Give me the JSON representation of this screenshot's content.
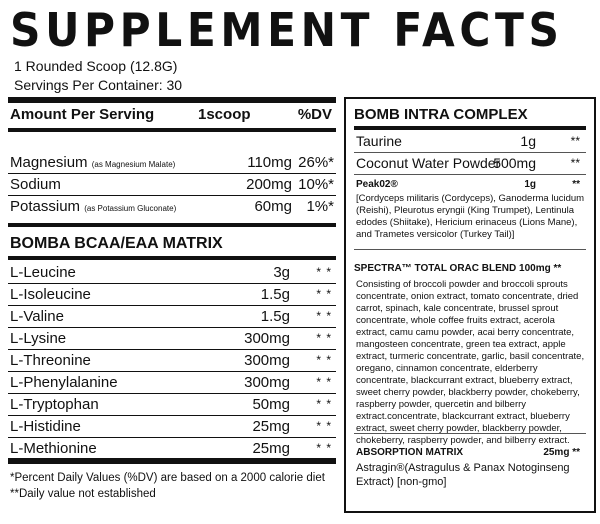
{
  "title": "SUPPLEMENT FACTS",
  "serving_size": "1 Rounded Scoop (12.8G)",
  "servings_per_container": "Servings Per Container: 30",
  "table_header": {
    "amount": "Amount Per Serving",
    "unit": "1scoop",
    "dv": "%DV"
  },
  "minerals": [
    {
      "name": "Magnesium",
      "note": "(as Magnesium Malate)",
      "amount": "110mg",
      "dv": "26%*"
    },
    {
      "name": "Sodium",
      "note": "",
      "amount": "200mg",
      "dv": "10%*"
    },
    {
      "name": "Potassium",
      "note": "(as Potassium Gluconate)",
      "amount": "60mg",
      "dv": "1%*"
    }
  ],
  "bcaa_title": "BOMBA BCAA/EAA MATRIX",
  "bcaa": [
    {
      "name": "L-Leucine",
      "amount": "3g",
      "dv": "* *"
    },
    {
      "name": "L-Isoleucine",
      "amount": "1.5g",
      "dv": "* *"
    },
    {
      "name": "L-Valine",
      "amount": "1.5g",
      "dv": "* *"
    },
    {
      "name": "L-Lysine",
      "amount": "300mg",
      "dv": "* *"
    },
    {
      "name": "L-Threonine",
      "amount": "300mg",
      "dv": "* *"
    },
    {
      "name": "L-Phenylalanine",
      "amount": "300mg",
      "dv": "* *"
    },
    {
      "name": "L-Tryptophan",
      "amount": "50mg",
      "dv": "* *"
    },
    {
      "name": "L-Histidine",
      "amount": "25mg",
      "dv": "* *"
    },
    {
      "name": "L-Methionine",
      "amount": "25mg",
      "dv": "* *"
    }
  ],
  "footnotes": [
    "*Percent Daily Values (%DV) are based on a 2000 calorie diet",
    "**Daily value not established"
  ],
  "intra": {
    "title": "BOMB INTRA COMPLEX",
    "items": [
      {
        "name": "Taurine",
        "amount": "1g",
        "dv": "**"
      },
      {
        "name": "Coconut Water Powder",
        "amount": "500mg",
        "dv": "**"
      }
    ],
    "peak": {
      "name": "Peak02®",
      "amount": "1g",
      "dv": "**",
      "desc": "[Cordyceps militaris (Cordyceps), Ganoderma lucidum (Reishi), Pleurotus eryngii (King Trumpet), Lentinula edodes (Shiitake), Hericium erinaceus (Lions Mane), and Trametes versicolor (Turkey Tail)]"
    }
  },
  "spectra": {
    "title": "SPECTRA™ TOTAL ORAC BLEND 100mg **",
    "desc": "Consisting of broccoli powder and broccoli sprouts concentrate, onion extract, tomato concentrate, dried carrot, spinach, kale concentrate, brussel sprout concentrate, whole coffee fruits extract, acerola extract, camu camu powder, acai berry concentrate, mangosteen concentrate, green tea extract, apple extract, turmeric concentrate, garlic, basil concentrate, oregano, cinnamon concentrate, elderberry concentrate, blackcurrant extract, blueberry extract, sweet cherry powder, blackberry powder, chokeberry, raspberry powder, quercetin and bilberry extract.concentrate, blackcurrant extract, blueberry extract, sweet cherry powder, blackberry powder, chokeberry, raspberry powder, and bilberry extract."
  },
  "absorption": {
    "title": "ABSORPTION MATRIX",
    "amount": "25mg **",
    "desc": "Astragin®(Astragulus & Panax Notoginseng Extract) [non-gmo]"
  }
}
